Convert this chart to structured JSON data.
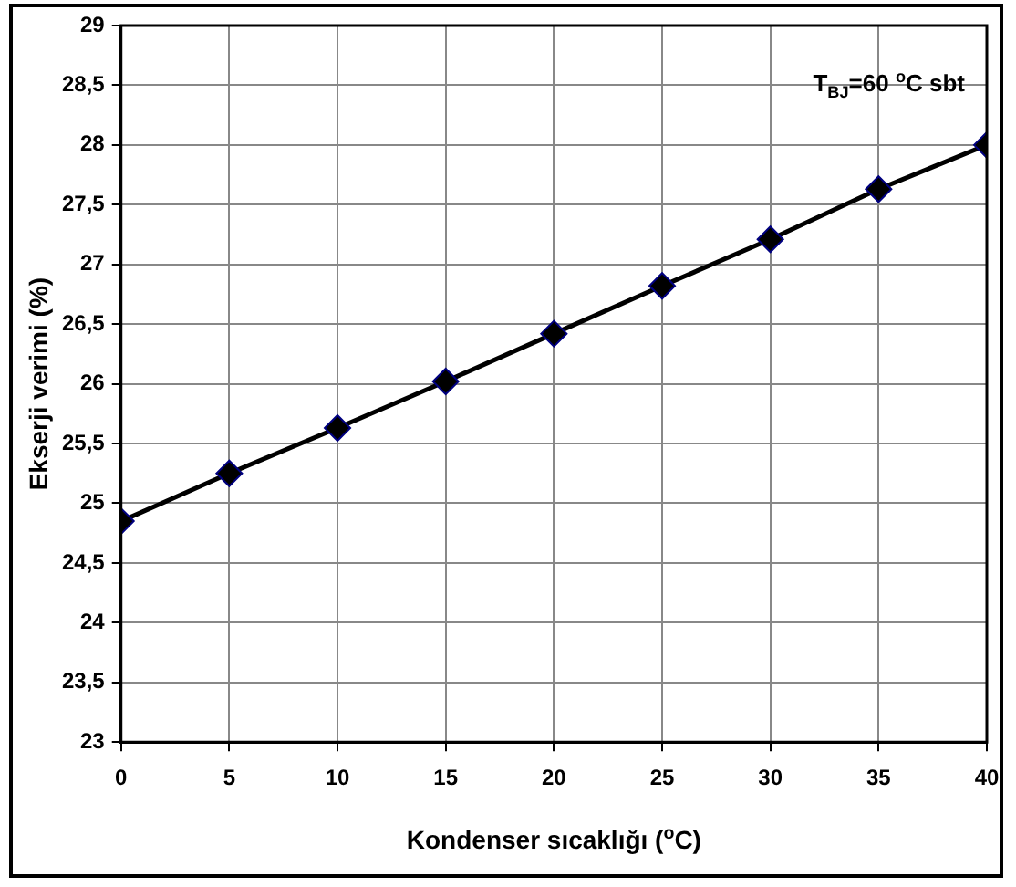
{
  "chart_data": {
    "type": "line",
    "xlabel": "Kondenser sıcaklığı ($^{o}$C)",
    "ylabel": "Ekserji verimi (%)",
    "annotations": [
      "T$_{BJ}$=60 $^{o}$C sbt"
    ],
    "x": [
      0,
      5,
      10,
      15,
      20,
      25,
      30,
      35,
      40
    ],
    "series": [
      {
        "color": "#000000",
        "values": [
          24.85,
          25.25,
          25.63,
          26.02,
          26.42,
          26.82,
          27.21,
          27.63,
          28.0
        ]
      }
    ],
    "xlim": [
      0,
      40
    ],
    "xticks": [
      0,
      5,
      10,
      15,
      20,
      25,
      30,
      35,
      40
    ],
    "ylim": [
      23,
      29
    ],
    "yticks": [
      23,
      {
        "value": 23.5,
        "label": "23,5"
      },
      24,
      {
        "value": 24.5,
        "label": "24,5"
      },
      25,
      {
        "value": 25.5,
        "label": "25,5"
      },
      26,
      {
        "value": 26.5,
        "label": "26,5"
      },
      27,
      {
        "value": 27.5,
        "label": "27,5"
      },
      28,
      {
        "value": 28.5,
        "label": "28,5"
      },
      29
    ],
    "grid": true,
    "legend": false,
    "marker": "diamond",
    "line_style": "solid"
  }
}
